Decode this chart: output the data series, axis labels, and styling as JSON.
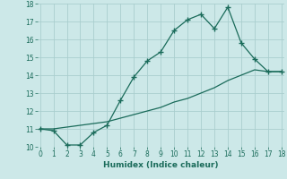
{
  "title": "",
  "xlabel": "Humidex (Indice chaleur)",
  "ylabel": "",
  "bg_color": "#cce8e8",
  "line_color": "#1a6b5a",
  "grid_color": "#aacece",
  "x_line1": [
    0,
    1,
    2,
    3,
    4,
    5,
    6,
    7,
    8,
    9,
    10,
    11,
    12,
    13,
    14,
    15,
    16,
    17,
    18
  ],
  "y_line1": [
    11.0,
    10.9,
    10.1,
    10.1,
    10.8,
    11.2,
    12.6,
    13.9,
    14.8,
    15.3,
    16.5,
    17.1,
    17.4,
    16.6,
    17.8,
    15.8,
    14.9,
    14.2,
    14.2
  ],
  "x_line2": [
    0,
    1,
    2,
    3,
    4,
    5,
    6,
    7,
    8,
    9,
    10,
    11,
    12,
    13,
    14,
    15,
    16,
    17,
    18
  ],
  "y_line2": [
    11.0,
    11.0,
    11.1,
    11.2,
    11.3,
    11.4,
    11.6,
    11.8,
    12.0,
    12.2,
    12.5,
    12.7,
    13.0,
    13.3,
    13.7,
    14.0,
    14.3,
    14.2,
    14.2
  ],
  "xlim": [
    -0.2,
    18.2
  ],
  "ylim": [
    10,
    18
  ],
  "yticks": [
    10,
    11,
    12,
    13,
    14,
    15,
    16,
    17,
    18
  ],
  "xticks": [
    0,
    1,
    2,
    3,
    4,
    5,
    6,
    7,
    8,
    9,
    10,
    11,
    12,
    13,
    14,
    15,
    16,
    17,
    18
  ],
  "marker": "+",
  "markersize": 4,
  "markeredgewidth": 1.0,
  "linewidth": 0.9,
  "tick_fontsize": 5.5,
  "xlabel_fontsize": 6.5
}
